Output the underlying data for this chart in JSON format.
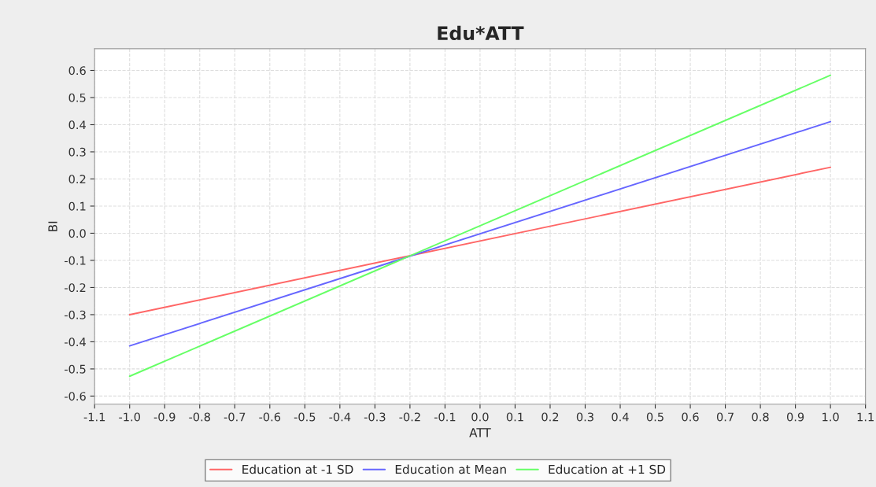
{
  "chart_data": {
    "type": "line",
    "title": "Edu*ATT",
    "xlabel": "ATT",
    "ylabel": "BI",
    "series": [
      {
        "name": "Education at -1 SD",
        "color": "#ff6666",
        "values": [
          -0.3,
          0.243
        ]
      },
      {
        "name": "Education at Mean",
        "color": "#6666ff",
        "values": [
          -0.415,
          0.411
        ]
      },
      {
        "name": "Education at +1 SD",
        "color": "#66ff66",
        "values": [
          -0.527,
          0.582
        ]
      }
    ],
    "x": [
      -1.0,
      1.0
    ],
    "xlim": [
      -1.1,
      1.1
    ],
    "ylim": [
      -0.63,
      0.68
    ],
    "xticks": [
      {
        "value": -1.1,
        "label": "-1.1"
      },
      {
        "value": -1.0,
        "label": "-1.0"
      },
      {
        "value": -0.9,
        "label": "-0.9"
      },
      {
        "value": -0.8,
        "label": "-0.8"
      },
      {
        "value": -0.7,
        "label": "-0.7"
      },
      {
        "value": -0.6,
        "label": "-0.6"
      },
      {
        "value": -0.5,
        "label": "-0.5"
      },
      {
        "value": -0.4,
        "label": "-0.4"
      },
      {
        "value": -0.3,
        "label": "-0.3"
      },
      {
        "value": -0.2,
        "label": "-0.2"
      },
      {
        "value": -0.1,
        "label": "-0.1"
      },
      {
        "value": 0.0,
        "label": "0.0"
      },
      {
        "value": 0.1,
        "label": "0.1"
      },
      {
        "value": 0.2,
        "label": "0.2"
      },
      {
        "value": 0.3,
        "label": "0.3"
      },
      {
        "value": 0.4,
        "label": "0.4"
      },
      {
        "value": 0.5,
        "label": "0.5"
      },
      {
        "value": 0.6,
        "label": "0.6"
      },
      {
        "value": 0.7,
        "label": "0.7"
      },
      {
        "value": 0.8,
        "label": "0.8"
      },
      {
        "value": 0.9,
        "label": "0.9"
      },
      {
        "value": 1.0,
        "label": "1.0"
      },
      {
        "value": 1.1,
        "label": "1.1"
      }
    ],
    "yticks": [
      {
        "value": -0.6,
        "label": "-0.6"
      },
      {
        "value": -0.5,
        "label": "-0.5"
      },
      {
        "value": -0.4,
        "label": "-0.4"
      },
      {
        "value": -0.3,
        "label": "-0.3"
      },
      {
        "value": -0.2,
        "label": "-0.2"
      },
      {
        "value": -0.1,
        "label": "-0.1"
      },
      {
        "value": 0.0,
        "label": "0.0"
      },
      {
        "value": 0.1,
        "label": "0.1"
      },
      {
        "value": 0.2,
        "label": "0.2"
      },
      {
        "value": 0.3,
        "label": "0.3"
      },
      {
        "value": 0.4,
        "label": "0.4"
      },
      {
        "value": 0.5,
        "label": "0.5"
      },
      {
        "value": 0.6,
        "label": "0.6"
      }
    ],
    "grid": true,
    "legend": "bottom",
    "marker": "none",
    "line_style": "solid"
  }
}
